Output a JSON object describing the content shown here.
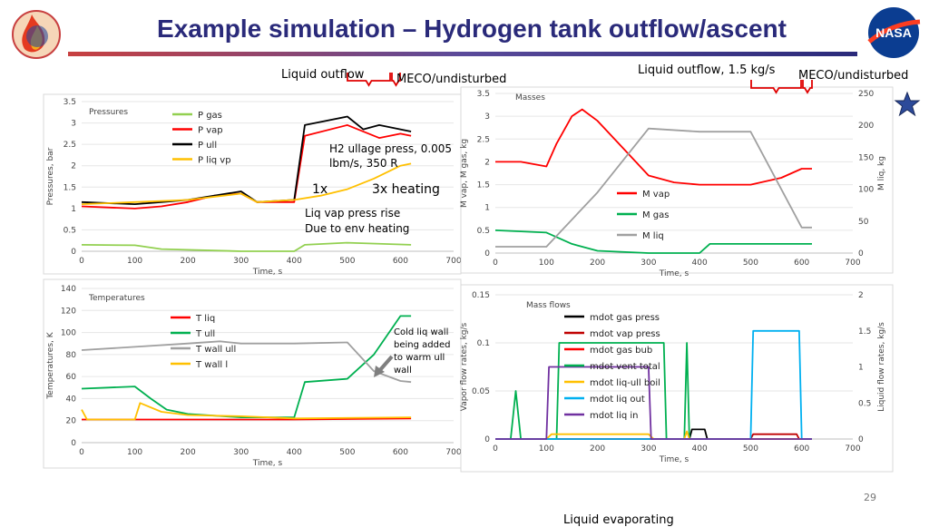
{
  "title": "Example simulation – Hydrogen tank outflow/ascent",
  "page_number": "29",
  "footer_cut_text": "Liquid evaporating",
  "colors": {
    "title": "#2a2a7a",
    "accent_red": "#c00000",
    "brace": "#e00000"
  },
  "icons": [
    "artemis-flame-logo-icon",
    "nasa-meatball-logo-icon",
    "star-icon",
    "arrow-icon"
  ],
  "annotations": {
    "liquid_outflow": "Liquid outflow",
    "meco_left": "MECO/undisturbed",
    "liquid_outflow_rate": "Liquid outflow, 1.5 kg/s",
    "meco_right": "MECO/undisturbed",
    "h2_ullage_1": "H2 ullage press, 0.005",
    "h2_ullage_2": "lbm/s, 350 R",
    "heat_1x": "1x",
    "heat_3x": "3x heating",
    "liq_vap_1": "Liq vap press rise",
    "liq_vap_2": "Due to env heating",
    "cold_wall_1": "Cold liq wall",
    "cold_wall_2": "being added",
    "cold_wall_3": "to warm ull",
    "cold_wall_4": "wall"
  },
  "chart_data": [
    {
      "id": "pressures",
      "type": "line",
      "title": "Pressures",
      "xlabel": "Time, s",
      "ylabel": "Pressures, bar",
      "xlim": [
        0,
        700
      ],
      "ylim": [
        0,
        3.5
      ],
      "xticks": [
        0,
        100,
        200,
        300,
        400,
        500,
        600,
        700
      ],
      "yticks": [
        0,
        0.5,
        1,
        1.5,
        2,
        2.5,
        3,
        3.5
      ],
      "legend_position": "upper-left",
      "series": [
        {
          "name": "P gas",
          "color": "#92d050",
          "points": [
            [
              0,
              0.15
            ],
            [
              100,
              0.14
            ],
            [
              150,
              0.05
            ],
            [
              300,
              0.0
            ],
            [
              400,
              0.0
            ],
            [
              420,
              0.15
            ],
            [
              500,
              0.2
            ],
            [
              620,
              0.15
            ]
          ]
        },
        {
          "name": "P vap",
          "color": "#ff0000",
          "points": [
            [
              0,
              1.05
            ],
            [
              100,
              1.0
            ],
            [
              150,
              1.05
            ],
            [
              200,
              1.15
            ],
            [
              250,
              1.3
            ],
            [
              300,
              1.35
            ],
            [
              330,
              1.15
            ],
            [
              400,
              1.15
            ],
            [
              420,
              2.7
            ],
            [
              500,
              2.95
            ],
            [
              560,
              2.65
            ],
            [
              600,
              2.75
            ],
            [
              620,
              2.7
            ]
          ]
        },
        {
          "name": "P ull",
          "color": "#000000",
          "points": [
            [
              0,
              1.15
            ],
            [
              100,
              1.1
            ],
            [
              150,
              1.15
            ],
            [
              200,
              1.2
            ],
            [
              250,
              1.3
            ],
            [
              300,
              1.4
            ],
            [
              330,
              1.15
            ],
            [
              400,
              1.2
            ],
            [
              420,
              2.95
            ],
            [
              500,
              3.15
            ],
            [
              530,
              2.85
            ],
            [
              560,
              2.95
            ],
            [
              600,
              2.85
            ],
            [
              620,
              2.8
            ]
          ]
        },
        {
          "name": "P liq vp",
          "color": "#ffc000",
          "points": [
            [
              0,
              1.1
            ],
            [
              100,
              1.15
            ],
            [
              200,
              1.2
            ],
            [
              300,
              1.35
            ],
            [
              330,
              1.15
            ],
            [
              400,
              1.2
            ],
            [
              450,
              1.3
            ],
            [
              500,
              1.45
            ],
            [
              550,
              1.7
            ],
            [
              600,
              2.0
            ],
            [
              620,
              2.05
            ]
          ]
        }
      ]
    },
    {
      "id": "masses",
      "type": "line",
      "title": "Masses",
      "xlabel": "Time, s",
      "ylabel": "M vap, M gas, kg",
      "y2label": "M liq, kg",
      "xlim": [
        0,
        700
      ],
      "ylim": [
        0,
        3.5
      ],
      "y2lim": [
        0,
        250
      ],
      "xticks": [
        0,
        100,
        200,
        300,
        400,
        500,
        600,
        700
      ],
      "yticks": [
        0,
        0.5,
        1,
        1.5,
        2,
        2.5,
        3,
        3.5
      ],
      "y2ticks": [
        0,
        50,
        100,
        150,
        200,
        250
      ],
      "legend_position": "lower-center",
      "series": [
        {
          "name": "M vap",
          "color": "#ff0000",
          "axis": "left",
          "points": [
            [
              0,
              2.0
            ],
            [
              50,
              2.0
            ],
            [
              100,
              1.9
            ],
            [
              120,
              2.4
            ],
            [
              150,
              3.0
            ],
            [
              170,
              3.15
            ],
            [
              200,
              2.9
            ],
            [
              250,
              2.3
            ],
            [
              300,
              1.7
            ],
            [
              350,
              1.55
            ],
            [
              400,
              1.5
            ],
            [
              500,
              1.5
            ],
            [
              560,
              1.65
            ],
            [
              600,
              1.85
            ],
            [
              620,
              1.85
            ]
          ]
        },
        {
          "name": "M gas",
          "color": "#00b050",
          "axis": "left",
          "points": [
            [
              0,
              0.5
            ],
            [
              100,
              0.45
            ],
            [
              150,
              0.2
            ],
            [
              200,
              0.05
            ],
            [
              300,
              0.0
            ],
            [
              400,
              0.0
            ],
            [
              420,
              0.2
            ],
            [
              620,
              0.2
            ]
          ]
        },
        {
          "name": "M liq",
          "color": "#a0a0a0",
          "axis": "right",
          "points": [
            [
              0,
              10
            ],
            [
              100,
              10
            ],
            [
              200,
              95
            ],
            [
              300,
              195
            ],
            [
              400,
              190
            ],
            [
              500,
              190
            ],
            [
              600,
              40
            ],
            [
              620,
              40
            ]
          ]
        }
      ]
    },
    {
      "id": "temperatures",
      "type": "line",
      "title": "Temperatures",
      "xlabel": "Time, s",
      "ylabel": "Temperatures, K",
      "xlim": [
        0,
        700
      ],
      "ylim": [
        0,
        140
      ],
      "xticks": [
        0,
        100,
        200,
        300,
        400,
        500,
        600,
        700
      ],
      "yticks": [
        0,
        20,
        40,
        60,
        80,
        100,
        120,
        140
      ],
      "legend_position": "upper-center",
      "series": [
        {
          "name": "T liq",
          "color": "#ff0000",
          "points": [
            [
              0,
              21
            ],
            [
              300,
              21
            ],
            [
              400,
              21
            ],
            [
              620,
              22
            ]
          ]
        },
        {
          "name": "T ull",
          "color": "#00b050",
          "points": [
            [
              0,
              49
            ],
            [
              50,
              50
            ],
            [
              100,
              51
            ],
            [
              130,
              40
            ],
            [
              160,
              30
            ],
            [
              200,
              26
            ],
            [
              300,
              23
            ],
            [
              400,
              23
            ],
            [
              420,
              55
            ],
            [
              500,
              58
            ],
            [
              550,
              80
            ],
            [
              600,
              115
            ],
            [
              620,
              115
            ]
          ]
        },
        {
          "name": "T wall ull",
          "color": "#a0a0a0",
          "points": [
            [
              0,
              84
            ],
            [
              100,
              87
            ],
            [
              200,
              90
            ],
            [
              260,
              92
            ],
            [
              300,
              90
            ],
            [
              400,
              90
            ],
            [
              500,
              91
            ],
            [
              550,
              65
            ],
            [
              600,
              56
            ],
            [
              620,
              55
            ]
          ]
        },
        {
          "name": "T wall l",
          "color": "#ffc000",
          "points": [
            [
              0,
              30
            ],
            [
              10,
              21
            ],
            [
              100,
              21
            ],
            [
              110,
              36
            ],
            [
              150,
              28
            ],
            [
              200,
              25
            ],
            [
              300,
              24
            ],
            [
              400,
              22
            ],
            [
              620,
              23
            ]
          ]
        }
      ]
    },
    {
      "id": "massflows",
      "type": "line",
      "title": "Mass flows",
      "xlabel": "Time, s",
      "ylabel": "Vapor flow rates, kg/s",
      "y2label": "Liquid flow rates, kg/s",
      "xlim": [
        0,
        700
      ],
      "ylim": [
        0,
        0.15
      ],
      "y2lim": [
        0,
        2
      ],
      "xticks": [
        0,
        100,
        200,
        300,
        400,
        500,
        600,
        700
      ],
      "yticks": [
        0,
        0.05,
        0.1,
        0.15
      ],
      "y2ticks": [
        0,
        0.5,
        1,
        1.5,
        2
      ],
      "legend_position": "upper-center",
      "series": [
        {
          "name": "mdot gas press",
          "color": "#000000",
          "axis": "left",
          "points": [
            [
              0,
              0
            ],
            [
              380,
              0
            ],
            [
              385,
              0.01
            ],
            [
              410,
              0.01
            ],
            [
              415,
              0
            ],
            [
              620,
              0
            ]
          ]
        },
        {
          "name": "mdot vap press",
          "color": "#c00000",
          "axis": "left",
          "points": [
            [
              0,
              0
            ],
            [
              500,
              0
            ],
            [
              505,
              0.005
            ],
            [
              590,
              0.005
            ],
            [
              595,
              0
            ],
            [
              620,
              0
            ]
          ]
        },
        {
          "name": "mdot gas bub",
          "color": "#ff0000",
          "axis": "left",
          "points": [
            [
              0,
              0
            ],
            [
              620,
              0
            ]
          ]
        },
        {
          "name": "mdot vent total",
          "color": "#00b050",
          "axis": "left",
          "points": [
            [
              0,
              0
            ],
            [
              30,
              0
            ],
            [
              40,
              0.05
            ],
            [
              50,
              0
            ],
            [
              120,
              0
            ],
            [
              125,
              0.1
            ],
            [
              330,
              0.1
            ],
            [
              335,
              0
            ],
            [
              370,
              0
            ],
            [
              375,
              0.1
            ],
            [
              380,
              0
            ],
            [
              620,
              0
            ]
          ]
        },
        {
          "name": "mdot liq-ull boil",
          "color": "#ffc000",
          "axis": "left",
          "points": [
            [
              0,
              0
            ],
            [
              100,
              0
            ],
            [
              110,
              0.005
            ],
            [
              300,
              0.005
            ],
            [
              310,
              0
            ],
            [
              370,
              0
            ],
            [
              375,
              0.008
            ],
            [
              380,
              0
            ],
            [
              620,
              0
            ]
          ]
        },
        {
          "name": "mdot liq out",
          "color": "#00b0f0",
          "axis": "right",
          "points": [
            [
              0,
              0
            ],
            [
              500,
              0
            ],
            [
              505,
              1.5
            ],
            [
              595,
              1.5
            ],
            [
              600,
              0
            ],
            [
              620,
              0
            ]
          ]
        },
        {
          "name": "mdot liq in",
          "color": "#7030a0",
          "axis": "right",
          "points": [
            [
              0,
              0
            ],
            [
              100,
              0
            ],
            [
              105,
              1.0
            ],
            [
              300,
              1.0
            ],
            [
              305,
              0
            ],
            [
              620,
              0
            ]
          ]
        }
      ]
    }
  ]
}
